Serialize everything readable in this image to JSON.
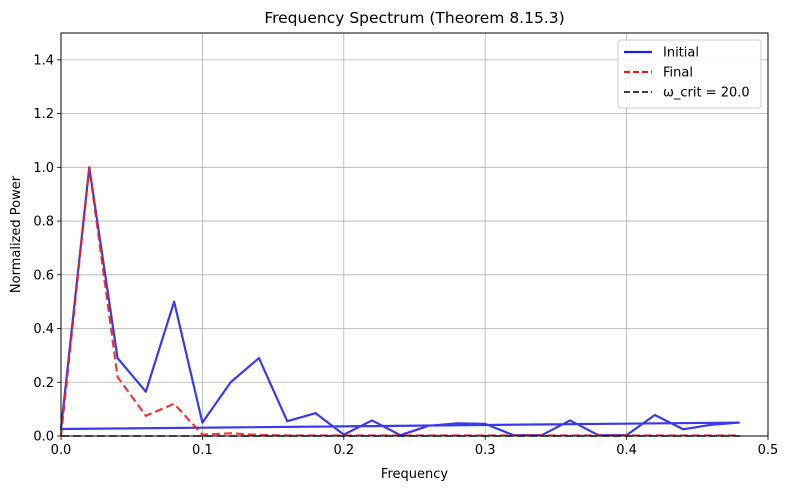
{
  "chart_data": {
    "type": "line",
    "title": "Frequency Spectrum (Theorem 8.15.3)",
    "xlabel": "Frequency",
    "ylabel": "Normalized Power",
    "xlim": [
      0,
      0.5
    ],
    "ylim": [
      0,
      1.5
    ],
    "xticks": [
      "0.0",
      "0.1",
      "0.2",
      "0.3",
      "0.4",
      "0.5"
    ],
    "yticks": [
      "0.0",
      "0.2",
      "0.4",
      "0.6",
      "0.8",
      "1.0",
      "1.2",
      "1.4"
    ],
    "grid": true,
    "legend_position": "top-right",
    "series": [
      {
        "name": "Initial",
        "color": "#1f1fe6",
        "style": "solid",
        "x": [
          0.48,
          0.0,
          0.02,
          0.04,
          0.06,
          0.08,
          0.1,
          0.12,
          0.14,
          0.16,
          0.18,
          0.2,
          0.22,
          0.24,
          0.26,
          0.28,
          0.3,
          0.32,
          0.34,
          0.36,
          0.38,
          0.4,
          0.42,
          0.44,
          0.46,
          0.48
        ],
        "y": [
          0.05,
          0.026,
          1.0,
          0.29,
          0.165,
          0.5,
          0.05,
          0.2,
          0.29,
          0.055,
          0.085,
          0.005,
          0.058,
          0.003,
          0.038,
          0.047,
          0.045,
          0.003,
          0.003,
          0.058,
          0.003,
          0.003,
          0.078,
          0.025,
          0.042,
          0.05
        ]
      },
      {
        "name": "Final",
        "color": "#e62020",
        "style": "dashed",
        "x": [
          0.0,
          0.02,
          0.04,
          0.06,
          0.08,
          0.1,
          0.12,
          0.14,
          0.16,
          0.18,
          0.2,
          0.22,
          0.24,
          0.26,
          0.28,
          0.3,
          0.32,
          0.34,
          0.36,
          0.38,
          0.4,
          0.42,
          0.44,
          0.46,
          0.48
        ],
        "y": [
          0.0,
          1.0,
          0.22,
          0.075,
          0.12,
          0.005,
          0.01,
          0.004,
          0.002,
          0.002,
          0.002,
          0.002,
          0.002,
          0.002,
          0.002,
          0.002,
          0.002,
          0.002,
          0.002,
          0.002,
          0.002,
          0.002,
          0.002,
          0.002,
          0.002
        ]
      },
      {
        "name": "ω_crit = 20.0",
        "color": "#000000",
        "style": "dashed",
        "x": [
          0.0,
          0.48
        ],
        "y": [
          0.0,
          0.0
        ]
      }
    ]
  }
}
